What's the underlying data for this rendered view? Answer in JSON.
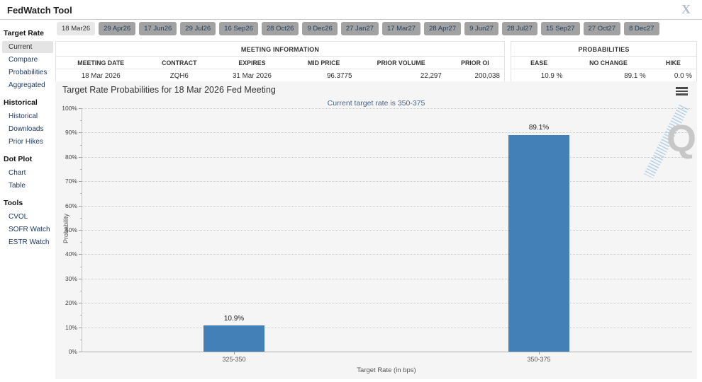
{
  "header": {
    "title": "FedWatch Tool",
    "close_icon": "X"
  },
  "sidebar": {
    "sections": [
      {
        "title": "Target Rate",
        "items": [
          {
            "label": "Current",
            "selected": true
          },
          {
            "label": "Compare",
            "selected": false
          },
          {
            "label": "Probabilities",
            "selected": false
          },
          {
            "label": "Aggregated",
            "selected": false
          }
        ]
      },
      {
        "title": "Historical",
        "items": [
          {
            "label": "Historical",
            "selected": false
          },
          {
            "label": "Downloads",
            "selected": false
          },
          {
            "label": "Prior Hikes",
            "selected": false
          }
        ]
      },
      {
        "title": "Dot Plot",
        "items": [
          {
            "label": "Chart",
            "selected": false
          },
          {
            "label": "Table",
            "selected": false
          }
        ]
      },
      {
        "title": "Tools",
        "items": [
          {
            "label": "CVOL",
            "selected": false
          },
          {
            "label": "SOFR Watch",
            "selected": false
          },
          {
            "label": "ESTR Watch",
            "selected": false
          }
        ]
      }
    ]
  },
  "tabs": [
    {
      "label": "18 Mar26",
      "selected": true
    },
    {
      "label": "29 Apr26",
      "selected": false
    },
    {
      "label": "17 Jun26",
      "selected": false
    },
    {
      "label": "29 Jul26",
      "selected": false
    },
    {
      "label": "16 Sep26",
      "selected": false
    },
    {
      "label": "28 Oct26",
      "selected": false
    },
    {
      "label": "9 Dec26",
      "selected": false
    },
    {
      "label": "27 Jan27",
      "selected": false
    },
    {
      "label": "17 Mar27",
      "selected": false
    },
    {
      "label": "28 Apr27",
      "selected": false
    },
    {
      "label": "9 Jun27",
      "selected": false
    },
    {
      "label": "28 Jul27",
      "selected": false
    },
    {
      "label": "15 Sep27",
      "selected": false
    },
    {
      "label": "27 Oct27",
      "selected": false
    },
    {
      "label": "8 Dec27",
      "selected": false
    }
  ],
  "meeting_info": {
    "title": "MEETING INFORMATION",
    "columns": [
      "MEETING DATE",
      "CONTRACT",
      "EXPIRES",
      "MID PRICE",
      "PRIOR VOLUME",
      "PRIOR OI"
    ],
    "values": [
      "18 Mar 2026",
      "ZQH6",
      "31 Mar 2026",
      "96.3775",
      "22,297",
      "200,038"
    ]
  },
  "probabilities": {
    "title": "PROBABILITIES",
    "columns": [
      "EASE",
      "NO CHANGE",
      "HIKE"
    ],
    "values": [
      "10.9 %",
      "89.1 %",
      "0.0 %"
    ]
  },
  "chart_data": {
    "type": "bar",
    "title": "Target Rate Probabilities for 18 Mar 2026 Fed Meeting",
    "subtitle": "Current target rate is 350-375",
    "categories": [
      "325-350",
      "350-375"
    ],
    "values": [
      10.9,
      89.1
    ],
    "bar_labels": [
      "10.9%",
      "89.1%"
    ],
    "xlabel": "Target Rate (in bps)",
    "ylabel": "Probability",
    "ylim": [
      0,
      100
    ],
    "ytick_step": 10,
    "ytick_minor_step": 5,
    "bar_color": "#4380b8",
    "grid": "horizontal dotted",
    "legend": "none",
    "watermark": "Q"
  },
  "icons": {
    "menu": "hamburger-menu",
    "close": "close-x"
  }
}
